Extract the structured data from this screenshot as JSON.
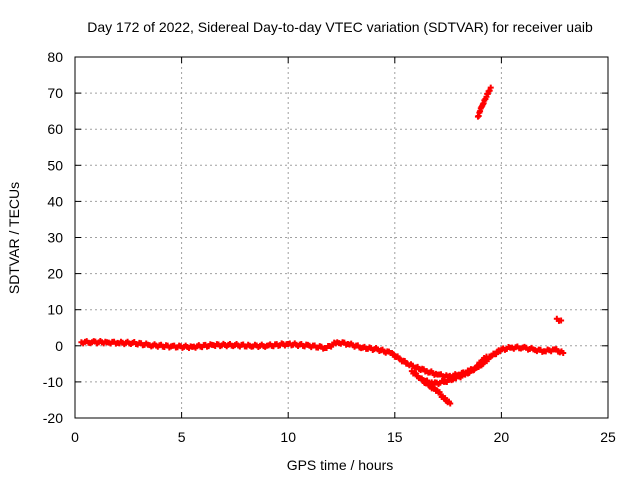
{
  "chart_data": {
    "type": "scatter",
    "title": "Day 172 of 2022, Sidereal Day-to-day VTEC variation (SDTVAR) for receiver uaib",
    "xlabel": "GPS time / hours",
    "ylabel": "SDTVAR / TECUs",
    "xlim": [
      0,
      25
    ],
    "ylim": [
      -20,
      80
    ],
    "xticks": [
      0,
      5,
      10,
      15,
      20,
      25
    ],
    "yticks": [
      -20,
      -10,
      0,
      10,
      20,
      30,
      40,
      50,
      60,
      70,
      80
    ],
    "xtick_labels": [
      "0",
      "5",
      "10",
      "15",
      "20",
      "25"
    ],
    "ytick_labels": [
      "-20",
      "-10",
      "0",
      "10",
      "20",
      "30",
      "40",
      "50",
      "60",
      "70",
      "80"
    ],
    "grid": true,
    "marker": "+",
    "series": [
      {
        "name": "main-track",
        "color": "#ff0000",
        "x": [
          0.3,
          0.8,
          1.5,
          2.0,
          2.7,
          3.5,
          4.5,
          5.5,
          6.5,
          7.5,
          8.2,
          9.0,
          10.0,
          11.0,
          11.8,
          12.3,
          12.8,
          13.5,
          14.2,
          14.8,
          15.2,
          15.6,
          16.0,
          16.5,
          17.0,
          17.5,
          18.0,
          18.5,
          19.0,
          19.5,
          20.0,
          20.5,
          21.0,
          21.5,
          22.0,
          22.5,
          22.9
        ],
        "y": [
          1.0,
          1.0,
          1.0,
          0.8,
          0.8,
          0.2,
          -0.2,
          -0.3,
          0.2,
          0.2,
          0.0,
          0.0,
          0.5,
          0.0,
          -0.6,
          1.0,
          0.5,
          -0.5,
          -1.0,
          -2.0,
          -3.5,
          -5.0,
          -6.0,
          -7.0,
          -8.0,
          -8.5,
          -8.0,
          -7.0,
          -5.5,
          -3.0,
          -1.0,
          -0.5,
          -0.5,
          -1.0,
          -1.5,
          -1.0,
          -2.0
        ]
      },
      {
        "name": "lower-branch",
        "color": "#ff0000",
        "x": [
          15.8,
          16.2,
          16.6,
          17.0,
          17.3,
          17.6
        ],
        "y": [
          -7.0,
          -9.0,
          -11.0,
          -12.5,
          -14.5,
          -16.0
        ]
      },
      {
        "name": "upper-branch",
        "color": "#ff0000",
        "x": [
          16.3,
          16.8,
          17.3,
          17.8,
          18.3,
          18.8,
          19.3
        ],
        "y": [
          -9.5,
          -10.5,
          -10.0,
          -9.0,
          -8.0,
          -6.0,
          -3.0
        ]
      },
      {
        "name": "outlier-high",
        "color": "#ff0000",
        "x": [
          18.9,
          19.0,
          19.1,
          19.2,
          19.3,
          19.4,
          19.5
        ],
        "y": [
          63.5,
          65.0,
          66.5,
          68.0,
          69.0,
          70.5,
          71.5
        ]
      },
      {
        "name": "outlier-mid",
        "color": "#ff0000",
        "x": [
          22.6,
          22.8
        ],
        "y": [
          7.5,
          7.0
        ]
      }
    ]
  }
}
